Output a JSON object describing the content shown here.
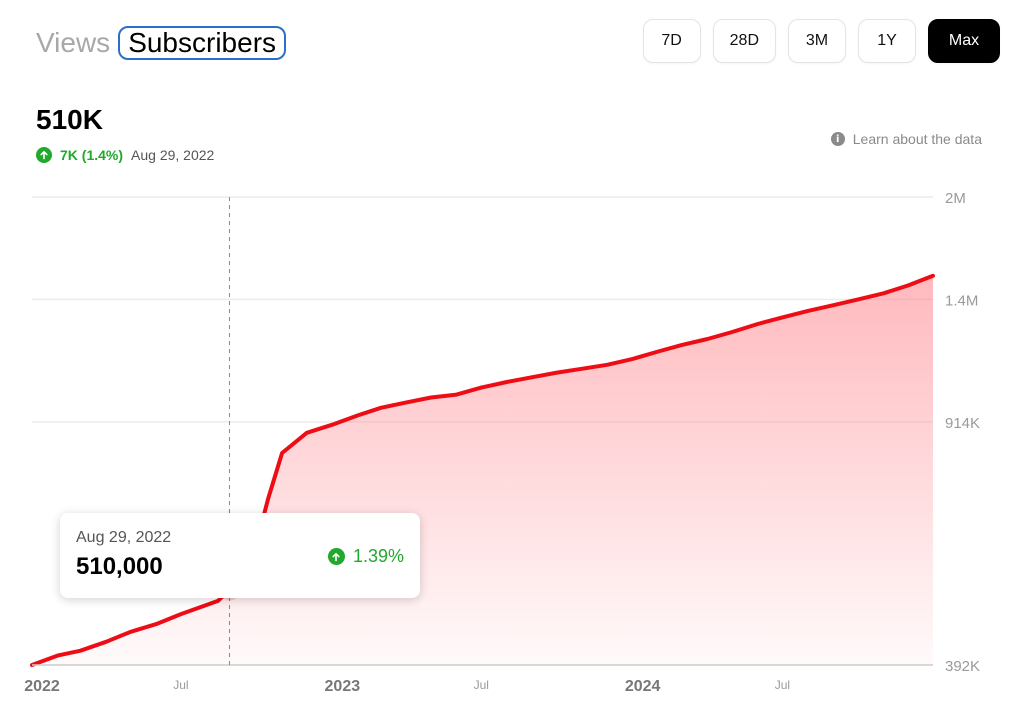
{
  "tabs": {
    "views": "Views",
    "subscribers": "Subscribers"
  },
  "ranges": [
    "7D",
    "28D",
    "3M",
    "1Y",
    "Max"
  ],
  "active_range": "Max",
  "summary": {
    "value": "510K",
    "change": "7K (1.4%)",
    "date": "Aug 29, 2022"
  },
  "learn_link": "Learn about the data",
  "tooltip": {
    "date": "Aug 29, 2022",
    "value": "510,000",
    "change": "1.39%"
  },
  "colors": {
    "line": "#ee0c15",
    "fill": "#ff8088",
    "positive": "#22a82c",
    "active_button": "#000000"
  },
  "icons": {
    "change": "arrow-up-circle-icon",
    "info": "info-icon"
  },
  "chart_data": {
    "type": "area",
    "y_scale": "log",
    "ylim": [
      392000,
      2000000
    ],
    "y_ticks": [
      {
        "label": "2M",
        "value": 2000000
      },
      {
        "label": "1.4M",
        "value": 1400000
      },
      {
        "label": "914K",
        "value": 914000
      },
      {
        "label": "392K",
        "value": 392000
      }
    ],
    "x_ticks": [
      {
        "label": "2022",
        "date": "2022-01-01",
        "bold": true
      },
      {
        "label": "Jul",
        "date": "2022-07-01",
        "bold": false
      },
      {
        "label": "2023",
        "date": "2023-01-01",
        "bold": true
      },
      {
        "label": "Jul",
        "date": "2023-07-01",
        "bold": false
      },
      {
        "label": "2024",
        "date": "2024-01-01",
        "bold": true
      },
      {
        "label": "Jul",
        "date": "2024-07-01",
        "bold": false
      }
    ],
    "xlim": [
      "2022-01-01",
      "2024-12-31"
    ],
    "grid": true,
    "highlight": {
      "date": "2022-08-29",
      "value": 510000
    },
    "series": [
      {
        "points": [
          [
            "2022-01-01",
            392000
          ],
          [
            "2022-02-01",
            405000
          ],
          [
            "2022-03-01",
            412000
          ],
          [
            "2022-04-01",
            425000
          ],
          [
            "2022-05-01",
            440000
          ],
          [
            "2022-06-01",
            452000
          ],
          [
            "2022-07-01",
            468000
          ],
          [
            "2022-08-15",
            490000
          ],
          [
            "2022-08-29",
            510000
          ],
          [
            "2022-09-15",
            532000
          ],
          [
            "2022-10-01",
            600000
          ],
          [
            "2022-10-15",
            700000
          ],
          [
            "2022-11-01",
            820000
          ],
          [
            "2022-12-01",
            880000
          ],
          [
            "2023-01-01",
            905000
          ],
          [
            "2023-02-01",
            935000
          ],
          [
            "2023-03-01",
            960000
          ],
          [
            "2023-04-01",
            978000
          ],
          [
            "2023-05-01",
            995000
          ],
          [
            "2023-06-01",
            1005000
          ],
          [
            "2023-07-01",
            1030000
          ],
          [
            "2023-08-01",
            1050000
          ],
          [
            "2023-09-01",
            1068000
          ],
          [
            "2023-10-01",
            1085000
          ],
          [
            "2023-11-01",
            1100000
          ],
          [
            "2023-12-01",
            1115000
          ],
          [
            "2024-01-01",
            1138000
          ],
          [
            "2024-02-01",
            1168000
          ],
          [
            "2024-03-01",
            1195000
          ],
          [
            "2024-04-01",
            1220000
          ],
          [
            "2024-05-01",
            1250000
          ],
          [
            "2024-06-01",
            1285000
          ],
          [
            "2024-07-01",
            1315000
          ],
          [
            "2024-08-01",
            1345000
          ],
          [
            "2024-09-01",
            1372000
          ],
          [
            "2024-10-01",
            1400000
          ],
          [
            "2024-11-01",
            1430000
          ],
          [
            "2024-12-01",
            1470000
          ],
          [
            "2024-12-31",
            1520000
          ]
        ]
      }
    ]
  }
}
